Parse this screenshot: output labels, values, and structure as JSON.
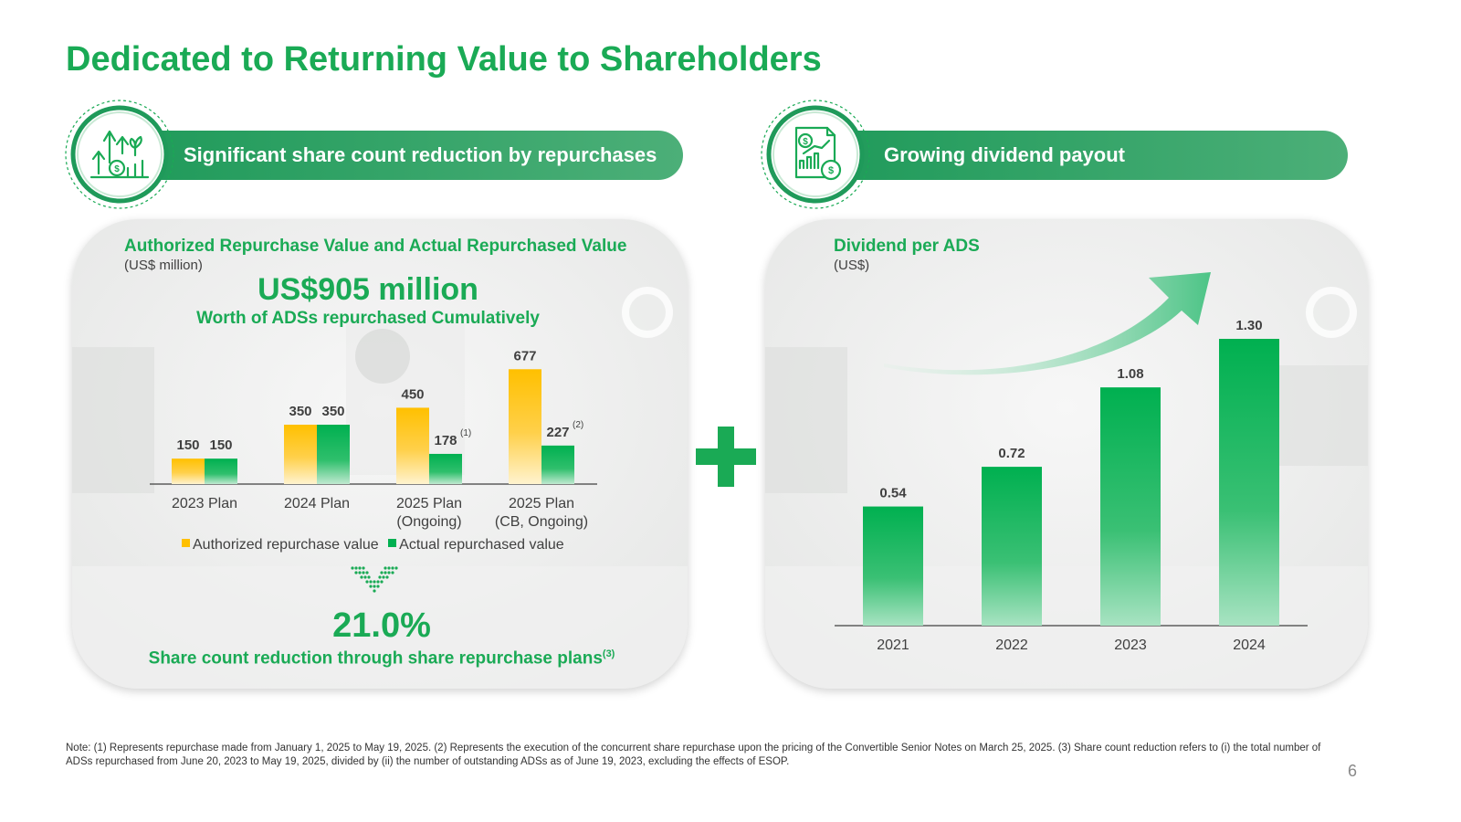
{
  "title": "Dedicated to Returning Value to Shareholders",
  "left": {
    "banner": "Significant share count reduction by repurchases",
    "icon": "growth-arrows-coin-icon",
    "chart_title": "Authorized Repurchase Value and Actual Repurchased Value",
    "unit": "(US$ million)",
    "highlight_value": "US$905 million",
    "highlight_label": "Worth of ADSs repurchased Cumulatively",
    "legend": {
      "authorized": "Authorized repurchase value",
      "actual": "Actual repurchased value"
    },
    "arrow_icon": "dotted-chevron-down-icon",
    "stat_value": "21.0%",
    "stat_label": "Share count reduction through share repurchase plans",
    "stat_sup": "(3)"
  },
  "plus_icon": "plus-icon",
  "right": {
    "banner": "Growing dividend payout",
    "icon": "report-dollar-icon",
    "chart_title": "Dividend per ADS",
    "unit": "(US$)",
    "trend_icon": "trend-arrow-icon"
  },
  "chart_data": [
    {
      "type": "bar",
      "categories": [
        [
          "2023 Plan"
        ],
        [
          "2024 Plan"
        ],
        [
          "2025 Plan",
          "(Ongoing)"
        ],
        [
          "2025 Plan",
          "(CB, Ongoing)"
        ]
      ],
      "series": [
        {
          "name": "Authorized repurchase value",
          "values": [
            150,
            350,
            450,
            677
          ],
          "labels": [
            "150",
            "350",
            "450",
            "677"
          ],
          "footnotes": [
            "",
            "",
            "",
            ""
          ]
        },
        {
          "name": "Actual repurchased value",
          "values": [
            150,
            350,
            178,
            227
          ],
          "labels": [
            "150",
            "350",
            "178",
            "227"
          ],
          "footnotes": [
            "",
            "",
            "(1)",
            "(2)"
          ]
        }
      ],
      "ylim": [
        0,
        700
      ]
    },
    {
      "type": "bar",
      "categories": [
        "2021",
        "2022",
        "2023",
        "2024"
      ],
      "values": [
        0.54,
        0.72,
        1.08,
        1.3
      ],
      "labels": [
        "0.54",
        "0.72",
        "1.08",
        "1.30"
      ],
      "ylim": [
        0,
        1.3
      ]
    }
  ],
  "colors": {
    "green": "#1aaa55",
    "bar_green": "#00b050",
    "bar_gold": "#ffc000",
    "banner": "#1f9a5a"
  },
  "note": "Note: (1) Represents repurchase made from January 1, 2025 to May 19, 2025. (2) Represents the execution of the concurrent share repurchase upon the pricing of the Convertible Senior Notes on March 25, 2025. (3) Share count reduction refers to (i) the total number of ADSs repurchased from June 20, 2023 to May 19, 2025, divided by (ii) the number of outstanding ADSs as of June 19, 2023, excluding the effects of ESOP.",
  "page_number": "6"
}
